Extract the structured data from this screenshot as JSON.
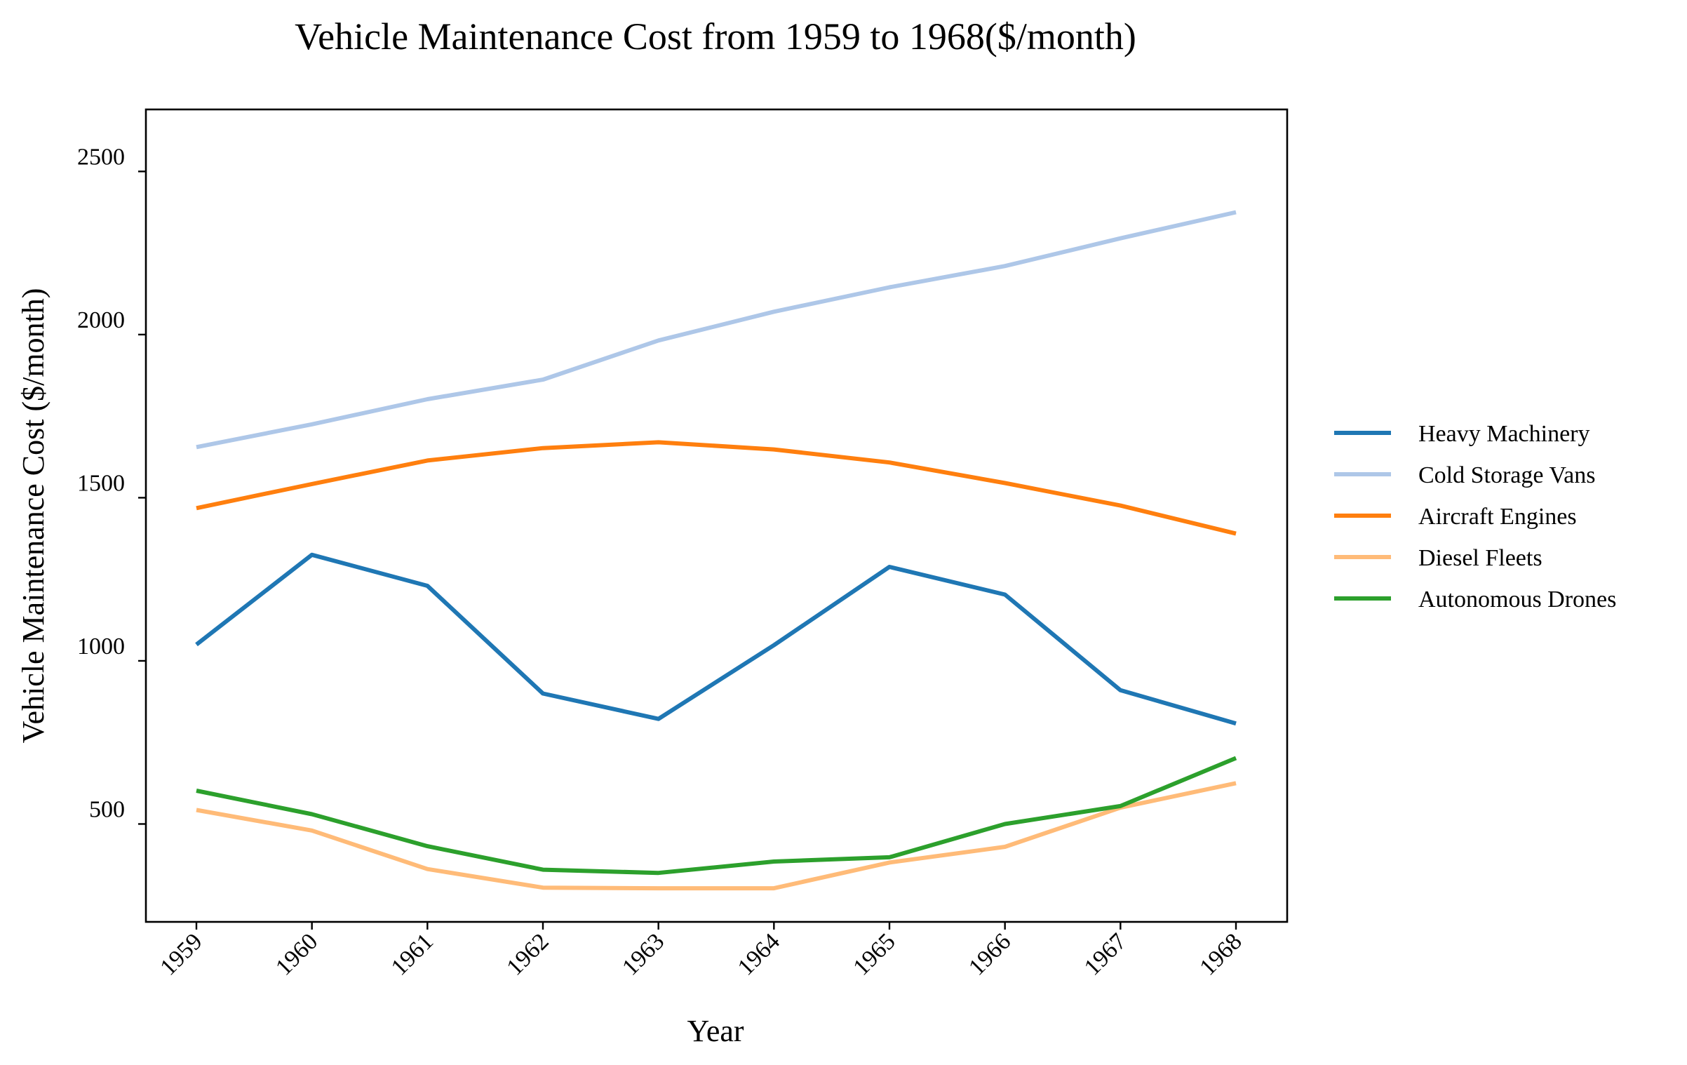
{
  "chart_data": {
    "type": "line",
    "title": "Vehicle Maintenance Cost from 1959 to 1968($/month)",
    "xlabel": "Year",
    "ylabel": "Vehicle Maintenance Cost ($/month)",
    "x": [
      "1959",
      "1960",
      "1961",
      "1962",
      "1963",
      "1964",
      "1965",
      "1966",
      "1967",
      "1968"
    ],
    "ylim": [
      200,
      2690
    ],
    "yticks": [
      500,
      1000,
      1500,
      2000,
      2500
    ],
    "grid": false,
    "legend_position": "right",
    "series": [
      {
        "name": "Heavy Machinery",
        "color": "#1f77b4",
        "values": [
          1050,
          1325,
          1230,
          900,
          822,
          1048,
          1288,
          1203,
          910,
          808
        ]
      },
      {
        "name": "Cold Storage Vans",
        "color": "#aec7e8",
        "values": [
          1655,
          1725,
          1802,
          1862,
          1982,
          2070,
          2145,
          2210,
          2295,
          2375
        ]
      },
      {
        "name": "Aircraft Engines",
        "color": "#ff7f0e",
        "values": [
          1468,
          1542,
          1614,
          1652,
          1670,
          1648,
          1608,
          1545,
          1476,
          1390
        ]
      },
      {
        "name": "Diesel Fleets",
        "color": "#ffbb78",
        "values": [
          543,
          480,
          362,
          305,
          303,
          303,
          382,
          430,
          550,
          625
        ]
      },
      {
        "name": "Autonomous Drones",
        "color": "#2ca02c",
        "values": [
          602,
          530,
          432,
          360,
          350,
          385,
          398,
          500,
          555,
          702
        ]
      }
    ]
  }
}
